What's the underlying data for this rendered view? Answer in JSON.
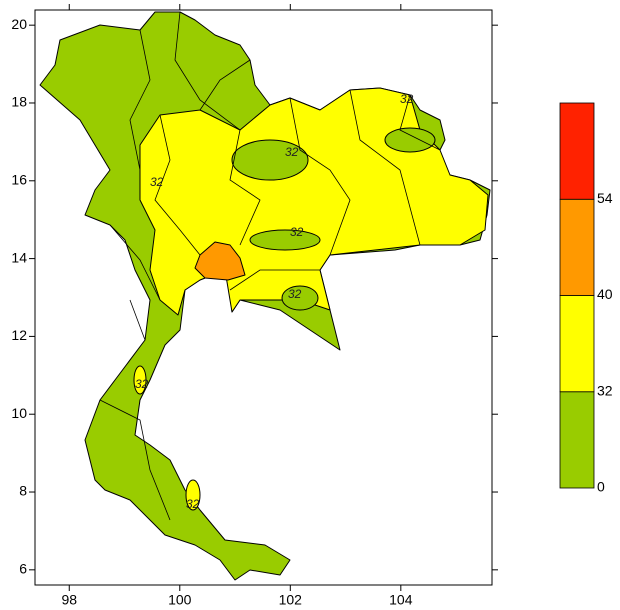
{
  "map": {
    "xlim": [
      97.38,
      105.65
    ],
    "ylim": [
      5.61,
      20.39
    ],
    "xticks": [
      98,
      100,
      102,
      104
    ],
    "yticks": [
      6,
      8,
      10,
      12,
      14,
      16,
      18,
      20
    ],
    "contour_label": 32,
    "colorbar": {
      "levels": [
        0,
        32,
        40,
        54
      ],
      "colors": [
        "#99cc00",
        "#ffff00",
        "#ff9900",
        "#ff2200"
      ]
    }
  }
}
